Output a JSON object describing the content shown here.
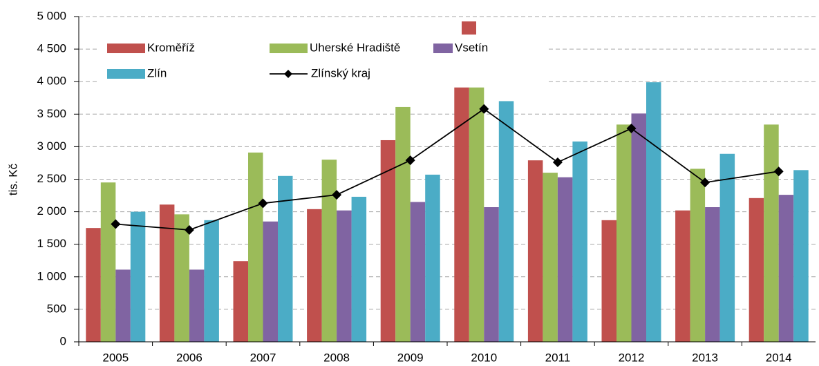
{
  "chart_data": {
    "type": "bar",
    "categories": [
      "2005",
      "2006",
      "2007",
      "2008",
      "2009",
      "2010",
      "2011",
      "2012",
      "2013",
      "2014"
    ],
    "series": [
      {
        "name": "Kroměříž",
        "color": "#c0504d",
        "values": [
          1750,
          2110,
          1240,
          2040,
          3100,
          3910,
          2790,
          1870,
          2020,
          2210
        ]
      },
      {
        "name": "Uherské Hradiště",
        "color": "#9bbb59",
        "values": [
          2450,
          1960,
          2910,
          2800,
          3610,
          3910,
          2600,
          3340,
          2660,
          3340
        ]
      },
      {
        "name": "Vsetín",
        "color": "#8064a2",
        "values": [
          1110,
          1110,
          1850,
          2020,
          2150,
          2070,
          2530,
          3510,
          2070,
          2260
        ]
      },
      {
        "name": "Zlín",
        "color": "#4bacc6",
        "values": [
          2000,
          1870,
          2550,
          2230,
          2570,
          3700,
          3080,
          3990,
          2890,
          2640
        ]
      },
      {
        "name": "Zlínský kraj",
        "color": "#000000",
        "type": "line",
        "values": [
          1810,
          1720,
          2130,
          2260,
          2790,
          3580,
          2760,
          3280,
          2450,
          2620
        ]
      }
    ],
    "ylabel": "tis. Kč",
    "ylim": [
      0,
      5000
    ],
    "yticks": [
      0,
      500,
      {
        "value": 1000,
        "label": "1 000"
      },
      {
        "value": 1500,
        "label": "1 500"
      },
      {
        "value": 2000,
        "label": "2 000"
      },
      {
        "value": 2500,
        "label": "2 500"
      },
      {
        "value": 3000,
        "label": "3 000"
      },
      {
        "value": 3500,
        "label": "3 500"
      },
      {
        "value": 4000,
        "label": "4 000"
      },
      {
        "value": 4500,
        "label": "4 500"
      },
      {
        "value": 5000,
        "label": "5 000"
      }
    ],
    "grid": true
  }
}
